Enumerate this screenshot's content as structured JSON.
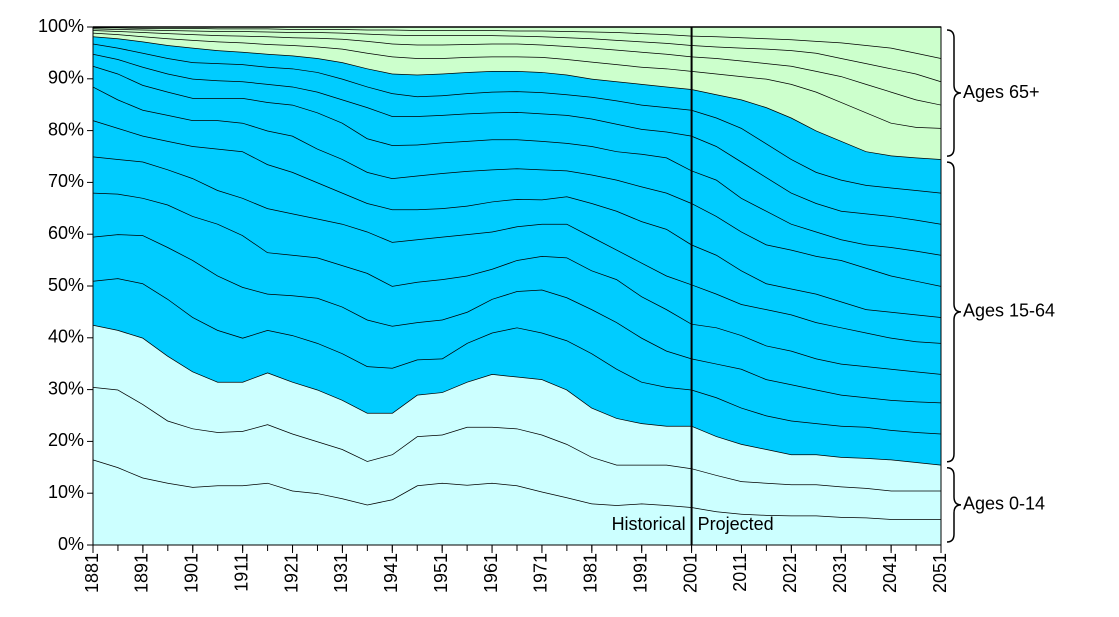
{
  "chart_data": {
    "type": "stacked_area",
    "x": [
      1881,
      1886,
      1891,
      1896,
      1901,
      1906,
      1911,
      1916,
      1921,
      1926,
      1931,
      1936,
      1941,
      1946,
      1951,
      1956,
      1961,
      1966,
      1971,
      1976,
      1981,
      1986,
      1991,
      1996,
      2001,
      2006,
      2011,
      2016,
      2021,
      2026,
      2031,
      2036,
      2041,
      2046,
      2051
    ],
    "xlim": [
      1881,
      2051
    ],
    "xticks": [
      1881,
      1891,
      1901,
      1911,
      1921,
      1931,
      1941,
      1951,
      1961,
      1971,
      1981,
      1991,
      2001,
      2011,
      2021,
      2031,
      2041,
      2051
    ],
    "ylim": [
      0,
      100
    ],
    "yticks": [
      {
        "value": 0,
        "label": "0%"
      },
      {
        "value": 10,
        "label": "10%"
      },
      {
        "value": 20,
        "label": "20%"
      },
      {
        "value": 30,
        "label": "30%"
      },
      {
        "value": 40,
        "label": "40%"
      },
      {
        "value": 50,
        "label": "50%"
      },
      {
        "value": 60,
        "label": "60%"
      },
      {
        "value": 70,
        "label": "70%"
      },
      {
        "value": 80,
        "label": "80%"
      },
      {
        "value": 90,
        "label": "90%"
      },
      {
        "value": 100,
        "label": "100%"
      }
    ],
    "grid": false,
    "line_color": "#000000",
    "series": [
      {
        "color": "#ccffff",
        "values": [
          16.5,
          15,
          13,
          12,
          11.2,
          11.5,
          11.5,
          12,
          10.5,
          10,
          9,
          7.8,
          8.8,
          11.5,
          12,
          11.6,
          12,
          11.5,
          10.3,
          9.2,
          8,
          7.7,
          8,
          7.7,
          7.3,
          6.5,
          6,
          5.8,
          5.7,
          5.7,
          5.4,
          5.3,
          5,
          5,
          5
        ]
      },
      {
        "color": "#ccffff",
        "values": [
          14,
          15,
          14.2,
          12,
          11.3,
          10.3,
          10.5,
          11.3,
          11,
          10,
          9.5,
          8.4,
          8.7,
          9.5,
          9.3,
          11.2,
          10.8,
          11,
          11,
          10.3,
          9,
          7.8,
          7.5,
          7.8,
          7.5,
          7,
          6.3,
          6.2,
          6,
          6,
          5.9,
          5.7,
          5.5,
          5.5,
          5.5
        ]
      },
      {
        "color": "#ccffff",
        "values": [
          12,
          11.5,
          12.8,
          12.5,
          11,
          9.7,
          9.5,
          10,
          10,
          10,
          9.5,
          9.3,
          8,
          8,
          8.2,
          8.7,
          10.2,
          10,
          10.7,
          10.5,
          9.5,
          9,
          8,
          7.5,
          8.2,
          7.5,
          7.2,
          6.5,
          5.8,
          5.8,
          5.7,
          5.8,
          6,
          5.5,
          5
        ]
      },
      {
        "color": "#00ccff",
        "values": [
          8.5,
          10,
          10.5,
          11,
          10.5,
          10,
          8.5,
          8.2,
          9,
          9,
          9,
          9,
          8.7,
          6.8,
          6.5,
          7.5,
          8,
          9.5,
          9,
          9.5,
          10.5,
          9.5,
          8,
          7.5,
          7,
          7.5,
          7,
          6.5,
          6.5,
          6,
          6,
          6,
          5.7,
          5.8,
          6
        ]
      },
      {
        "color": "#00ccff",
        "values": [
          8.5,
          8.5,
          9.3,
          10,
          11,
          10.5,
          9.8,
          7,
          7.7,
          8.7,
          9,
          9,
          8.1,
          7.2,
          7.5,
          6,
          6.5,
          7,
          8.3,
          8.3,
          8.5,
          9,
          8.5,
          7,
          6,
          6.5,
          7.5,
          7,
          7,
          6.5,
          6,
          5.7,
          5.8,
          5.9,
          6
        ]
      },
      {
        "color": "#00ccff",
        "values": [
          8.5,
          7.8,
          7.2,
          8.2,
          8.5,
          10,
          10,
          8,
          7.8,
          7.8,
          8,
          9,
          7.7,
          7.8,
          7.8,
          7,
          5.8,
          6,
          6.5,
          7.7,
          7.5,
          8.3,
          8,
          8,
          6.7,
          7,
          6.5,
          6.5,
          6.5,
          6,
          6,
          6,
          6,
          5.8,
          5.5
        ]
      },
      {
        "color": "#00ccff",
        "values": [
          7,
          6.7,
          7,
          6.8,
          7.3,
          6.5,
          7.2,
          8.5,
          8,
          7.5,
          8,
          8,
          8.5,
          8.2,
          8.2,
          8,
          7.2,
          6.5,
          6.2,
          6.5,
          6.5,
          5.7,
          6.5,
          6.5,
          7.6,
          6.5,
          6,
          7,
          7,
          7,
          7,
          6.5,
          6,
          5.8,
          6
        ]
      },
      {
        "color": "#00ccff",
        "values": [
          7,
          6,
          5,
          5.5,
          6.2,
          8,
          9,
          8.5,
          8,
          7,
          6,
          5.5,
          6.3,
          5.8,
          5.5,
          5.5,
          5.8,
          5.3,
          4.7,
          5.3,
          6.5,
          7.5,
          8,
          9,
          7.7,
          7.5,
          6.5,
          5,
          5,
          5.5,
          5,
          4.5,
          5,
          5.2,
          5
        ]
      },
      {
        "color": "#00ccff",
        "values": [
          6.5,
          5.5,
          5,
          5,
          5,
          5.5,
          5.5,
          6.5,
          7,
          6.5,
          6.5,
          6,
          6,
          6.5,
          6.8,
          6.7,
          6.2,
          5.9,
          5.8,
          5,
          5.5,
          6,
          6.7,
          7,
          8,
          7.5,
          7.5,
          7.5,
          7.5,
          7.3,
          8,
          8,
          7,
          6.5,
          6
        ]
      },
      {
        "color": "#00ccff",
        "values": [
          4,
          5,
          4.8,
          4.5,
          4.3,
          4.3,
          4.8,
          5.5,
          6,
          7,
          7,
          6.5,
          6.4,
          6,
          5.9,
          5.8,
          5.8,
          5.6,
          5.5,
          5.3,
          5.5,
          5.5,
          6.3,
          6.8,
          6.3,
          7,
          6.5,
          6.5,
          5,
          4.7,
          4,
          4.5,
          5.5,
          5.8,
          6
        ]
      },
      {
        "color": "#00ccff",
        "values": [
          2.3,
          2.8,
          3.5,
          3.5,
          3.7,
          3.4,
          3.2,
          3.5,
          3.5,
          4,
          4.5,
          6,
          5.6,
          5.5,
          5.3,
          5.3,
          5.2,
          5.3,
          5.3,
          5.4,
          5.3,
          5.3,
          4.8,
          5,
          6.7,
          6.5,
          7,
          6.5,
          6,
          5.5,
          5.5,
          6,
          6,
          6,
          6
        ]
      },
      {
        "color": "#00ccff",
        "values": [
          2,
          2.2,
          2.7,
          3,
          3.2,
          3.3,
          3.3,
          3.3,
          3.5,
          3.8,
          4,
          4,
          4.4,
          3.8,
          3.8,
          3.9,
          4,
          4,
          4.1,
          4,
          4.2,
          4.5,
          4.7,
          4.7,
          5,
          5.5,
          6.5,
          6.5,
          6.5,
          6,
          6,
          5.5,
          5.5,
          5.7,
          6
        ]
      },
      {
        "color": "#00ccff",
        "values": [
          1.4,
          1.8,
          2.2,
          2.5,
          2.8,
          2.5,
          2.4,
          2.5,
          2.5,
          2.7,
          3.2,
          3.5,
          3.8,
          4.2,
          4.2,
          4.1,
          4,
          3.9,
          3.9,
          3.8,
          3.5,
          3.7,
          4,
          4,
          4,
          4.5,
          5.5,
          7,
          8,
          8,
          7.5,
          6.5,
          6.2,
          6.3,
          6.5
        ]
      },
      {
        "color": "#ccffcc",
        "values": [
          0.7,
          0.8,
          1,
          1.3,
          1.5,
          1.7,
          1.8,
          1.9,
          2,
          2.2,
          2.6,
          3,
          3.3,
          3.2,
          3,
          2.9,
          2.8,
          2.8,
          2.9,
          3,
          3.3,
          3.3,
          3.3,
          3.5,
          3.5,
          4,
          4.5,
          5.5,
          6.5,
          7.5,
          7.5,
          7.5,
          6.3,
          5.9,
          6
        ]
      },
      {
        "color": "#ccffcc",
        "values": [
          0.5,
          0.6,
          0.8,
          1,
          1.1,
          1.2,
          1.3,
          1.5,
          1.5,
          1.7,
          1.9,
          2.3,
          2.5,
          2.6,
          2.6,
          2.5,
          2.5,
          2.5,
          2.4,
          2.5,
          2.7,
          2.8,
          2.9,
          2.8,
          2.8,
          3,
          3,
          3,
          3.5,
          4,
          5,
          5.5,
          6,
          5.3,
          4.5
        ]
      },
      {
        "color": "#ccffcc",
        "values": [
          0.3,
          0.4,
          0.5,
          0.6,
          0.7,
          0.8,
          0.9,
          0.9,
          1,
          1.1,
          1.2,
          1.4,
          1.7,
          1.8,
          1.8,
          1.7,
          1.6,
          1.5,
          1.6,
          1.7,
          1.8,
          1.9,
          2,
          2.1,
          2.2,
          2.2,
          2.5,
          2.8,
          3,
          3.5,
          3.5,
          4,
          4.5,
          5,
          4.5
        ]
      },
      {
        "color": "#ccffcc",
        "values": [
          0.2,
          0.3,
          0.3,
          0.4,
          0.5,
          0.5,
          0.5,
          0.6,
          0.6,
          0.6,
          0.7,
          0.8,
          1,
          1,
          1,
          1,
          1,
          1,
          1.1,
          1.2,
          1.3,
          1.5,
          1.6,
          1.7,
          1.8,
          2,
          2,
          2,
          2.1,
          2.3,
          3,
          3.5,
          4,
          4,
          4.5
        ]
      },
      {
        "color": "#ccffcc",
        "values": [
          0.1,
          0.1,
          0.2,
          0.2,
          0.2,
          0.3,
          0.3,
          0.3,
          0.4,
          0.4,
          0.4,
          0.5,
          0.5,
          0.6,
          0.6,
          0.6,
          0.6,
          0.7,
          0.7,
          0.8,
          0.9,
          1,
          1.2,
          1.4,
          1.7,
          1.8,
          2,
          2.2,
          2.4,
          2.7,
          3,
          3.5,
          4,
          5,
          6
        ]
      }
    ],
    "groups": [
      {
        "label": "Ages 0-14",
        "size": 3
      },
      {
        "label": "Ages 15-64",
        "size": 10
      },
      {
        "label": "Ages 65+",
        "size": 5
      }
    ],
    "divider": {
      "x": 2001,
      "left_label": "Historical",
      "right_label": "Projected"
    }
  }
}
